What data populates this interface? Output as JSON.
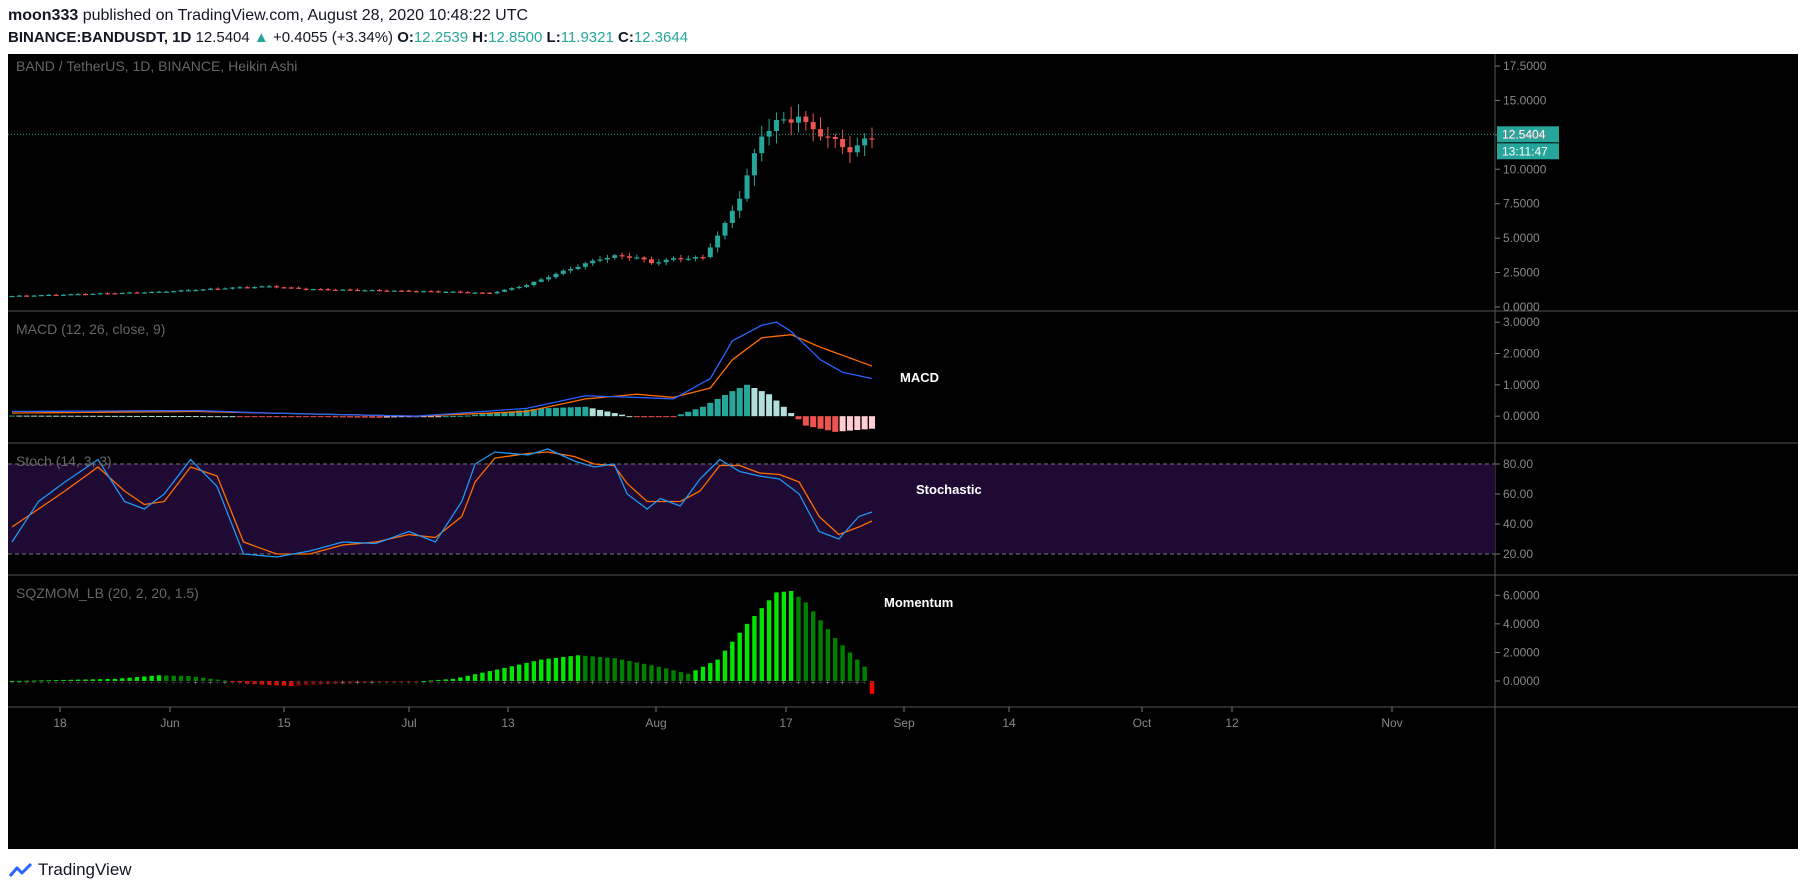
{
  "header": {
    "author": "moon333",
    "published_text": "published on TradingView.com, August 28, 2020 10:48:22 UTC",
    "symbol": "BINANCE:BANDUSDT, 1D",
    "last": "12.5404",
    "change": "+0.4055 (+3.34%)",
    "o_label": "O:",
    "o": "12.2539",
    "h_label": "H:",
    "h": "12.8500",
    "l_label": "L:",
    "l": "11.9321",
    "c_label": "C:",
    "c": "12.3644"
  },
  "footer": {
    "brand": "TradingView"
  },
  "colors": {
    "up": "#26a69a",
    "down": "#ef5350",
    "macd": "#2962ff",
    "signal": "#ff6d00",
    "stoch_k": "#2196f3",
    "stoch_d": "#ff6d00",
    "band": "#1e0a33"
  },
  "chart_data": [
    {
      "type": "candlestick",
      "title": "BAND / TetherUS, 1D, BINANCE, Heikin Ashi",
      "ylim": [
        0,
        17.5
      ],
      "yticks": [
        "17.5000",
        "15.0000",
        "12.5000",
        "10.0000",
        "7.5000",
        "5.0000",
        "2.5000",
        "0.0000"
      ],
      "last_price_label": "12.5404",
      "countdown_label": "13:11:47",
      "xticks": [
        "18",
        "Jun",
        "15",
        "Jul",
        "13",
        "Aug",
        "17",
        "Sep",
        "14",
        "Oct",
        "12",
        "Nov"
      ],
      "close_path": [
        [
          0,
          0.8
        ],
        [
          10,
          0.95
        ],
        [
          20,
          1.1
        ],
        [
          30,
          1.4
        ],
        [
          35,
          1.5
        ],
        [
          40,
          1.3
        ],
        [
          50,
          1.2
        ],
        [
          60,
          1.1
        ],
        [
          65,
          1.0
        ],
        [
          70,
          1.6
        ],
        [
          75,
          2.6
        ],
        [
          80,
          3.5
        ],
        [
          82,
          3.7
        ],
        [
          85,
          3.6
        ],
        [
          87,
          3.2
        ],
        [
          90,
          3.5
        ],
        [
          94,
          3.6
        ],
        [
          95,
          4.4
        ],
        [
          97,
          6.0
        ],
        [
          99,
          8.0
        ],
        [
          100,
          9.5
        ],
        [
          101,
          11.0
        ],
        [
          102,
          12.5
        ],
        [
          104,
          13.4
        ],
        [
          106,
          13.6
        ],
        [
          107,
          13.9
        ],
        [
          108,
          13.2
        ],
        [
          110,
          12.6
        ],
        [
          112,
          12.0
        ],
        [
          114,
          11.4
        ],
        [
          115,
          11.6
        ],
        [
          116,
          12.1
        ],
        [
          117,
          12.4
        ]
      ]
    },
    {
      "type": "line",
      "title": "MACD (12, 26, close, 9)",
      "annotation": "MACD",
      "ylim": [
        -0.6,
        3.1
      ],
      "yticks": [
        "3.0000",
        "2.0000",
        "1.0000",
        "0.0000"
      ],
      "macd_path": [
        [
          0,
          0.15
        ],
        [
          25,
          0.18
        ],
        [
          35,
          0.1
        ],
        [
          55,
          0
        ],
        [
          70,
          0.25
        ],
        [
          78,
          0.65
        ],
        [
          85,
          0.6
        ],
        [
          90,
          0.55
        ],
        [
          95,
          1.2
        ],
        [
          98,
          2.4
        ],
        [
          102,
          2.9
        ],
        [
          104,
          3.0
        ],
        [
          106,
          2.7
        ],
        [
          110,
          1.8
        ],
        [
          113,
          1.4
        ],
        [
          117,
          1.2
        ]
      ],
      "signal_path": [
        [
          0,
          0.1
        ],
        [
          25,
          0.15
        ],
        [
          35,
          0.1
        ],
        [
          55,
          0
        ],
        [
          70,
          0.15
        ],
        [
          78,
          0.55
        ],
        [
          85,
          0.7
        ],
        [
          90,
          0.6
        ],
        [
          95,
          0.9
        ],
        [
          98,
          1.8
        ],
        [
          102,
          2.5
        ],
        [
          106,
          2.6
        ],
        [
          110,
          2.2
        ],
        [
          117,
          1.6
        ]
      ],
      "histogram_path": [
        [
          0,
          0.02
        ],
        [
          30,
          0
        ],
        [
          50,
          -0.05
        ],
        [
          62,
          0.02
        ],
        [
          72,
          0.25
        ],
        [
          78,
          0.3
        ],
        [
          84,
          0
        ],
        [
          90,
          -0.02
        ],
        [
          94,
          0.3
        ],
        [
          98,
          0.8
        ],
        [
          100,
          1.0
        ],
        [
          103,
          0.7
        ],
        [
          106,
          0.1
        ],
        [
          108,
          -0.3
        ],
        [
          112,
          -0.5
        ],
        [
          117,
          -0.4
        ]
      ]
    },
    {
      "type": "line",
      "title": "Stoch (14, 3, 3)",
      "annotation": "Stochastic",
      "ylim": [
        10,
        90
      ],
      "yticks": [
        "80.00",
        "60.00",
        "40.00",
        "20.00"
      ],
      "k_path": [
        [
          0,
          28
        ],
        [
          4,
          55
        ],
        [
          8,
          68
        ],
        [
          13,
          83
        ],
        [
          17,
          55
        ],
        [
          20,
          50
        ],
        [
          23,
          60
        ],
        [
          27,
          83
        ],
        [
          31,
          65
        ],
        [
          35,
          20
        ],
        [
          40,
          18
        ],
        [
          45,
          22
        ],
        [
          50,
          28
        ],
        [
          55,
          27
        ],
        [
          60,
          35
        ],
        [
          64,
          28
        ],
        [
          68,
          55
        ],
        [
          70,
          80
        ],
        [
          73,
          88
        ],
        [
          78,
          86
        ],
        [
          81,
          90
        ],
        [
          85,
          82
        ],
        [
          88,
          78
        ],
        [
          91,
          80
        ],
        [
          93,
          60
        ],
        [
          96,
          50
        ],
        [
          98,
          57
        ],
        [
          101,
          52
        ],
        [
          104,
          70
        ],
        [
          107,
          83
        ],
        [
          110,
          75
        ],
        [
          113,
          72
        ],
        [
          116,
          70
        ],
        [
          119,
          60
        ],
        [
          122,
          35
        ],
        [
          125,
          30
        ],
        [
          128,
          45
        ],
        [
          130,
          48
        ]
      ],
      "d_path": [
        [
          0,
          38
        ],
        [
          4,
          50
        ],
        [
          8,
          62
        ],
        [
          13,
          78
        ],
        [
          17,
          62
        ],
        [
          20,
          53
        ],
        [
          23,
          55
        ],
        [
          27,
          78
        ],
        [
          31,
          72
        ],
        [
          35,
          28
        ],
        [
          40,
          20
        ],
        [
          45,
          20
        ],
        [
          50,
          26
        ],
        [
          55,
          28
        ],
        [
          60,
          33
        ],
        [
          64,
          31
        ],
        [
          68,
          45
        ],
        [
          70,
          68
        ],
        [
          73,
          84
        ],
        [
          78,
          87
        ],
        [
          81,
          88
        ],
        [
          85,
          85
        ],
        [
          88,
          80
        ],
        [
          91,
          79
        ],
        [
          93,
          67
        ],
        [
          96,
          55
        ],
        [
          98,
          55
        ],
        [
          101,
          55
        ],
        [
          104,
          62
        ],
        [
          107,
          79
        ],
        [
          110,
          79
        ],
        [
          113,
          74
        ],
        [
          116,
          73
        ],
        [
          119,
          68
        ],
        [
          122,
          45
        ],
        [
          125,
          33
        ],
        [
          128,
          38
        ],
        [
          130,
          42
        ]
      ]
    },
    {
      "type": "bar",
      "title": "SQZMOM_LB (20, 2, 20, 1.5)",
      "annotation": "Momentum",
      "ylim": [
        -1.4,
        7
      ],
      "yticks": [
        "6.0000",
        "4.0000",
        "2.0000",
        "0.0000"
      ],
      "momentum_path": [
        [
          0,
          0
        ],
        [
          14,
          0.15
        ],
        [
          20,
          0.4
        ],
        [
          24,
          0.35
        ],
        [
          28,
          0.1
        ],
        [
          32,
          -0.2
        ],
        [
          38,
          -0.35
        ],
        [
          44,
          -0.2
        ],
        [
          52,
          -0.05
        ],
        [
          56,
          0
        ],
        [
          60,
          0.15
        ],
        [
          66,
          0.8
        ],
        [
          72,
          1.5
        ],
        [
          77,
          1.8
        ],
        [
          82,
          1.6
        ],
        [
          88,
          1.0
        ],
        [
          92,
          0.5
        ],
        [
          96,
          1.5
        ],
        [
          100,
          4.0
        ],
        [
          104,
          6.2
        ],
        [
          106,
          6.3
        ],
        [
          108,
          5.5
        ],
        [
          112,
          3.0
        ],
        [
          116,
          1.0
        ],
        [
          117,
          -0.9
        ],
        [
          118,
          -1.3
        ]
      ]
    }
  ]
}
